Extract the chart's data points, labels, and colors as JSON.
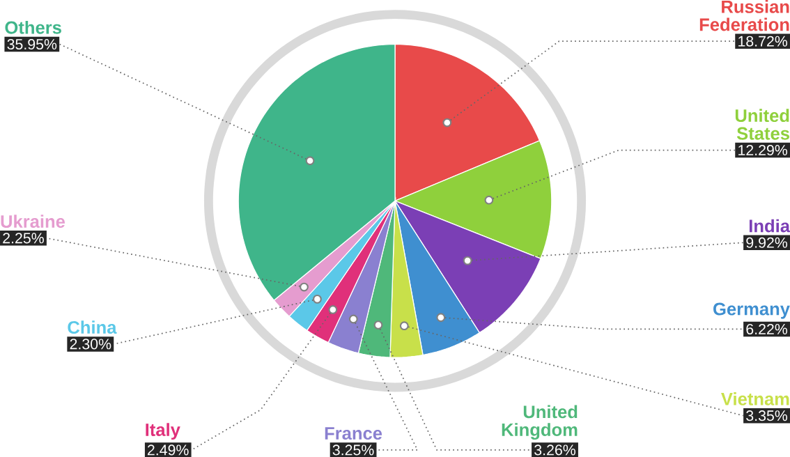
{
  "chart_data": {
    "type": "pie",
    "categories": [
      "Russian Federation",
      "United States",
      "India",
      "Germany",
      "Vietnam",
      "United Kingdom",
      "France",
      "Italy",
      "China",
      "Ukraine",
      "Others"
    ],
    "values": [
      18.72,
      12.29,
      9.92,
      6.22,
      3.35,
      3.26,
      3.25,
      2.49,
      2.3,
      2.25,
      35.95
    ],
    "value_labels": [
      "18.72%",
      "12.29%",
      "9.92%",
      "6.22%",
      "3.35%",
      "3.26%",
      "3.25%",
      "2.49%",
      "2.30%",
      "2.25%",
      "35.95%"
    ],
    "colors": [
      "#e84a4a",
      "#8fd03c",
      "#7b3fb5",
      "#3f8fd0",
      "#c8e04a",
      "#4fb87a",
      "#8a80d0",
      "#e0307a",
      "#5bc8e8",
      "#e59ccf",
      "#3fb58a"
    ]
  }
}
